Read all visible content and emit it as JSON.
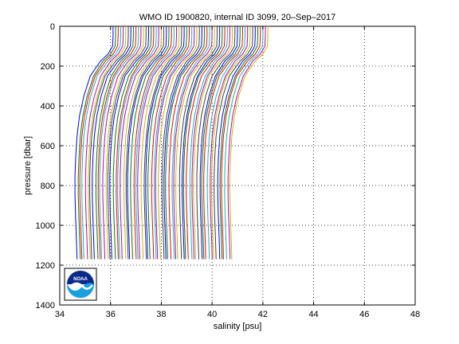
{
  "chart_data": {
    "type": "line",
    "title": "WMO ID 1900820, internal ID 3099, 20–Sep–2017",
    "xlabel": "salinity [psu]",
    "ylabel": "pressure [dbar]",
    "xlim": [
      34,
      48
    ],
    "ylim": [
      0,
      1400
    ],
    "y_reversed": true,
    "grid": true,
    "grid_style": "dotted",
    "x_ticks": [
      "34",
      "36",
      "38",
      "40",
      "42",
      "44",
      "46",
      "48"
    ],
    "y_ticks": [
      "0",
      "200",
      "400",
      "600",
      "800",
      "1000",
      "1200",
      "1400"
    ],
    "series_colors": [
      "#0000ff",
      "#008000",
      "#ff0000",
      "#00bfbf",
      "#bf00bf",
      "#bfbf00",
      "#404040"
    ],
    "series_count": 62,
    "offset_step": 0.1,
    "first_profile": {
      "base_salinity": 34.6,
      "points": [
        [
          1.5,
          0
        ],
        [
          1.5,
          50
        ],
        [
          1.48,
          100
        ],
        [
          1.3,
          140
        ],
        [
          1.0,
          175
        ],
        [
          0.6,
          250
        ],
        [
          0.35,
          350
        ],
        [
          0.18,
          450
        ],
        [
          0.08,
          550
        ],
        [
          0.03,
          650
        ],
        [
          0.0,
          750
        ],
        [
          0.0,
          850
        ],
        [
          0.02,
          950
        ],
        [
          0.05,
          1050
        ],
        [
          0.08,
          1170
        ]
      ]
    },
    "logo": {
      "text": "NOAA",
      "colors": [
        "#0a2a8a",
        "#1aa0e0"
      ]
    }
  }
}
